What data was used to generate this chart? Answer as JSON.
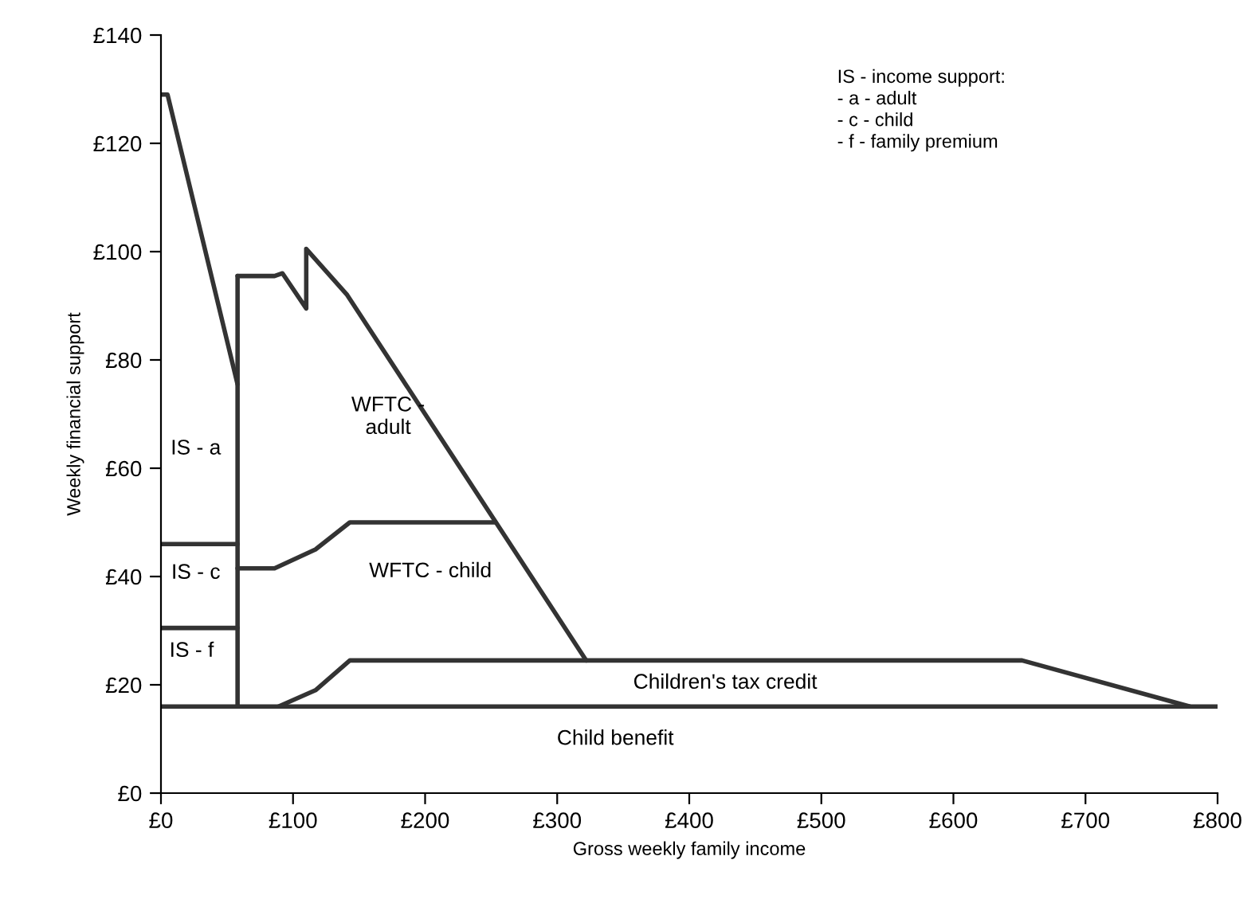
{
  "chart_data": {
    "type": "line",
    "xlabel": "Gross weekly family income",
    "ylabel": "Weekly financial support",
    "xlim": [
      0,
      800
    ],
    "ylim": [
      0,
      140
    ],
    "xticks": [
      {
        "value": 0,
        "label": "£0"
      },
      {
        "value": 100,
        "label": "£100"
      },
      {
        "value": 200,
        "label": "£200"
      },
      {
        "value": 300,
        "label": "£300"
      },
      {
        "value": 400,
        "label": "£400"
      },
      {
        "value": 500,
        "label": "£500"
      },
      {
        "value": 600,
        "label": "£600"
      },
      {
        "value": 700,
        "label": "£700"
      },
      {
        "value": 800,
        "label": "£800"
      }
    ],
    "yticks": [
      {
        "value": 0,
        "label": "£0"
      },
      {
        "value": 20,
        "label": "£20"
      },
      {
        "value": 40,
        "label": "£40"
      },
      {
        "value": 60,
        "label": "£60"
      },
      {
        "value": 80,
        "label": "£80"
      },
      {
        "value": 100,
        "label": "£100"
      },
      {
        "value": 120,
        "label": "£120"
      },
      {
        "value": 140,
        "label": "£140"
      }
    ],
    "grid": false,
    "legend": false,
    "marker": "none",
    "line_style": "solid",
    "series": [
      {
        "color": "#333333",
        "x": [
          0,
          5,
          58,
          58
        ],
        "values": [
          129,
          129,
          75.5,
          16
        ]
      },
      {
        "color": "#333333",
        "x": [
          58,
          86,
          92,
          110,
          110,
          141,
          322
        ],
        "values": [
          95.5,
          95.5,
          96,
          89.5,
          100.5,
          92,
          24.5
        ]
      },
      {
        "color": "#333333",
        "x": [
          58,
          58
        ],
        "values": [
          75.5,
          95.5
        ]
      },
      {
        "color": "#333333",
        "x": [
          0,
          58
        ],
        "values": [
          46,
          46
        ]
      },
      {
        "color": "#333333",
        "x": [
          0,
          58
        ],
        "values": [
          30.5,
          30.5
        ]
      },
      {
        "color": "#333333",
        "x": [
          58,
          86,
          117,
          143,
          253
        ],
        "values": [
          41.5,
          41.5,
          45,
          50,
          50
        ]
      },
      {
        "color": "#333333",
        "x": [
          89,
          117,
          143,
          322,
          652,
          779
        ],
        "values": [
          16,
          19,
          24.5,
          24.5,
          24.5,
          16
        ]
      },
      {
        "color": "#333333",
        "x": [
          0,
          800
        ],
        "values": [
          16,
          16
        ]
      }
    ],
    "annotations": [
      "IS - a",
      "WFTC -\nadult",
      "IS - c",
      "WFTC - child",
      "IS - f",
      "Children's tax credit",
      "Child benefit",
      "IS - income support:\n- a - adult\n- c - child\n- f - family premium"
    ]
  }
}
